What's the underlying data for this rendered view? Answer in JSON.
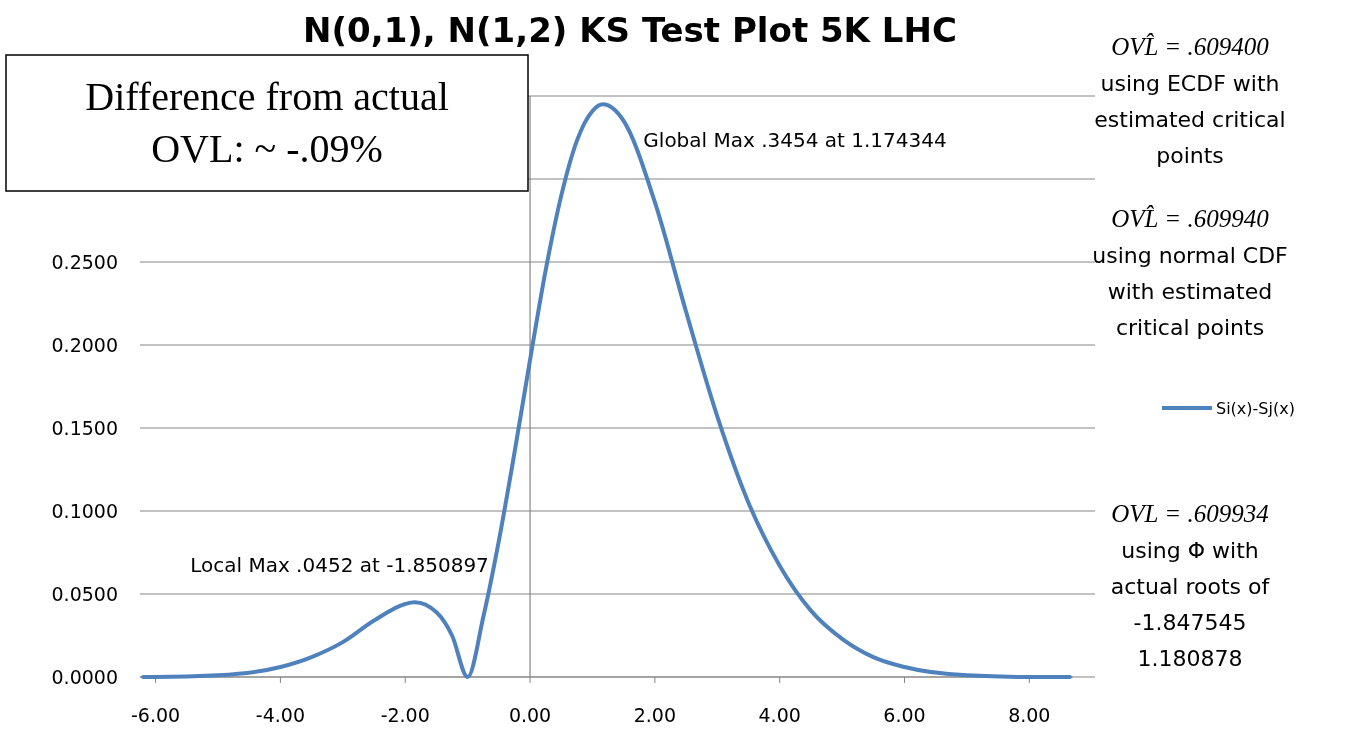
{
  "chart_data": {
    "type": "line",
    "title": "N(0,1), N(1,2) KS Test Plot 5K LHC",
    "x": [
      -6.2,
      -6,
      -5,
      -4,
      -3.5,
      -3,
      -2.5,
      -2,
      -1.85,
      -1.5,
      -1.25,
      -1,
      -0.75,
      -0.5,
      -0.25,
      0,
      0.25,
      0.5,
      0.75,
      1,
      1.17,
      1.5,
      2,
      2.5,
      3,
      3.5,
      4,
      4.5,
      5,
      5.5,
      6,
      7,
      8,
      8.65
    ],
    "series": [
      {
        "name": "Si(x)-Sj(x)",
        "color": "#4f81bd",
        "values": [
          0,
          0,
          0.001,
          0.006,
          0.012,
          0.021,
          0.034,
          0.044,
          0.045,
          0.039,
          0.025,
          0,
          0.036,
          0.082,
          0.135,
          0.191,
          0.245,
          0.29,
          0.323,
          0.341,
          0.345,
          0.335,
          0.286,
          0.22,
          0.157,
          0.105,
          0.067,
          0.04,
          0.023,
          0.012,
          0.006,
          0.001,
          0,
          0
        ]
      }
    ],
    "xlim": [
      -6.25,
      8.7
    ],
    "xticks": [
      {
        "value": -6,
        "label": "-6.00"
      },
      {
        "value": -4,
        "label": "-4.00"
      },
      {
        "value": -2,
        "label": "-2.00"
      },
      {
        "value": 0,
        "label": "0.00"
      },
      {
        "value": 2,
        "label": "2.00"
      },
      {
        "value": 4,
        "label": "4.00"
      },
      {
        "value": 6,
        "label": "6.00"
      },
      {
        "value": 8,
        "label": "8.00"
      }
    ],
    "ylim": [
      0,
      0.35
    ],
    "yticks": [
      {
        "value": 0,
        "label": "0.0000"
      },
      {
        "value": 0.05,
        "label": "0.0500"
      },
      {
        "value": 0.1,
        "label": "0.1000"
      },
      {
        "value": 0.15,
        "label": "0.1500"
      },
      {
        "value": 0.2,
        "label": "0.2000"
      },
      {
        "value": 0.25,
        "label": "0.2500"
      },
      {
        "value": 0.3,
        "label": null
      },
      {
        "value": 0.35,
        "label": null
      }
    ],
    "grid": "y",
    "ref_lines": [
      {
        "axis": "x",
        "value": 0,
        "color": "#868686"
      }
    ],
    "legend": "right",
    "line_style": "solid",
    "marker": "none",
    "annotations": [
      {
        "text": "Global Max .3454  at 1.174344",
        "x": 1.174344,
        "y": 0.3454
      },
      {
        "text": "Local Max .0452  at -1.850897",
        "x": -1.850897,
        "y": 0.0452
      },
      "Difference from actual\nOVL: ~ -.09%",
      "OVL̂ = .609400\nusing ECDF with\nestimated critical\npoints",
      "OVL̂ = .609940\nusing normal CDF\nwith estimated\ncritical points",
      "OVL = .609934\nusing Φ with\nactual roots of\n-1.847545\n1.180878"
    ]
  }
}
